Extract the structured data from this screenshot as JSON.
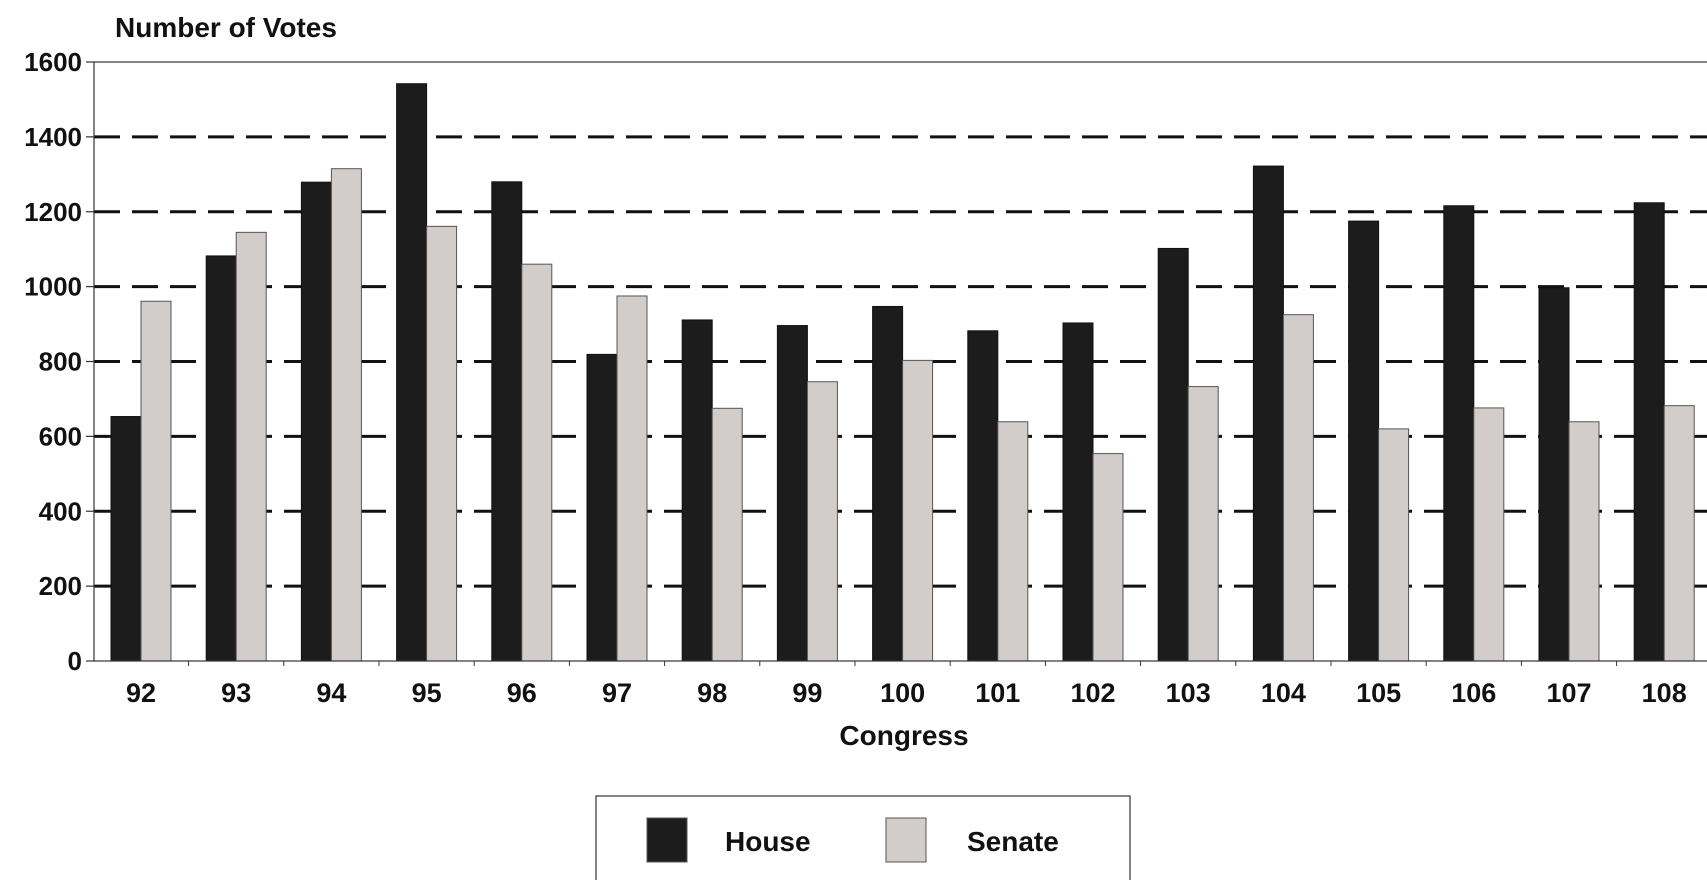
{
  "chart_data": {
    "type": "bar",
    "ylabel": "Number of Votes",
    "xlabel": "Congress",
    "categories": [
      "92",
      "93",
      "94",
      "95",
      "96",
      "97",
      "98",
      "99",
      "100",
      "101",
      "102",
      "103",
      "104",
      "105",
      "106",
      "107",
      "108"
    ],
    "series": [
      {
        "name": "House",
        "values": [
          653,
          1082,
          1279,
          1542,
          1280,
          819,
          911,
          896,
          947,
          882,
          903,
          1102,
          1322,
          1175,
          1216,
          997,
          1224
        ]
      },
      {
        "name": "Senate",
        "values": [
          961,
          1145,
          1315,
          1161,
          1060,
          975,
          675,
          746,
          803,
          639,
          554,
          733,
          925,
          620,
          676,
          639,
          682
        ]
      }
    ],
    "ylim": [
      0,
      1600
    ],
    "yticks": [
      0,
      200,
      400,
      600,
      800,
      1000,
      1200,
      1400,
      1600
    ],
    "grid": "dashed horizontal",
    "legend_position": "bottom-center",
    "colors": {
      "House": "#1c1c1c",
      "Senate": "#d2ccca"
    }
  }
}
